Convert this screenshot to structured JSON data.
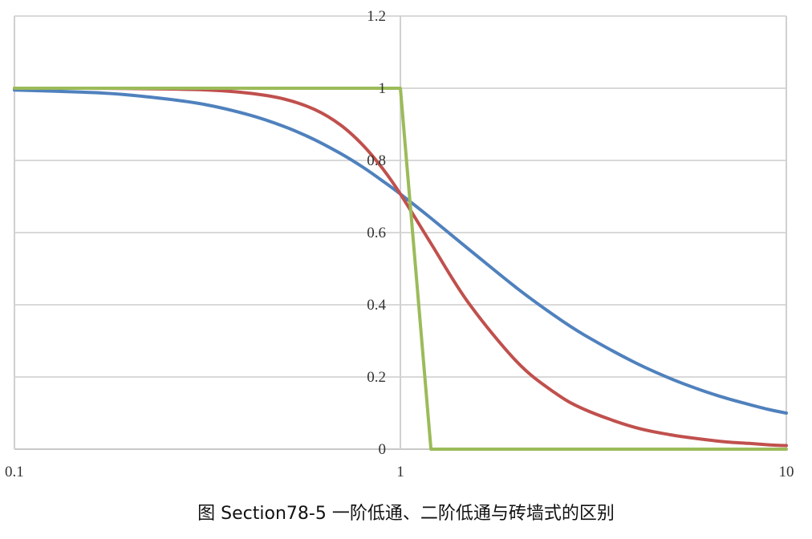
{
  "caption": "图 Section78-5  一阶低通、二阶低通与砖墙式的区别",
  "chart_data": {
    "type": "line",
    "xscale": "log",
    "xlim": [
      0.1,
      10
    ],
    "ylim": [
      0,
      1.2
    ],
    "xticks": [
      "0.1",
      "1",
      "10"
    ],
    "yticks": [
      "0",
      "0.2",
      "0.4",
      "0.6",
      "0.8",
      "1",
      "1.2"
    ],
    "grid": true,
    "x": [
      0.1,
      0.15,
      0.2,
      0.3,
      0.4,
      0.5,
      0.6,
      0.7,
      0.8,
      0.9,
      1.0,
      1.2,
      1.5,
      2,
      2.5,
      3,
      4,
      5,
      6,
      7,
      8,
      9,
      10
    ],
    "series": [
      {
        "color": "#4f81bd",
        "values": [
          0.995,
          0.989,
          0.981,
          0.958,
          0.928,
          0.894,
          0.857,
          0.819,
          0.781,
          0.743,
          0.707,
          0.64,
          0.555,
          0.447,
          0.371,
          0.316,
          0.243,
          0.196,
          0.164,
          0.141,
          0.124,
          0.11,
          0.1
        ]
      },
      {
        "color": "#c0504d",
        "values": [
          1.0,
          1.0,
          0.999,
          0.996,
          0.987,
          0.97,
          0.941,
          0.898,
          0.842,
          0.777,
          0.707,
          0.57,
          0.406,
          0.243,
          0.158,
          0.11,
          0.062,
          0.04,
          0.028,
          0.02,
          0.016,
          0.012,
          0.01
        ]
      },
      {
        "color": "#9bbb59",
        "values": [
          1,
          1,
          1,
          1,
          1,
          1,
          1,
          1,
          1,
          1,
          1,
          0,
          0,
          0,
          0,
          0,
          0,
          0,
          0,
          0,
          0,
          0,
          0
        ]
      }
    ]
  }
}
